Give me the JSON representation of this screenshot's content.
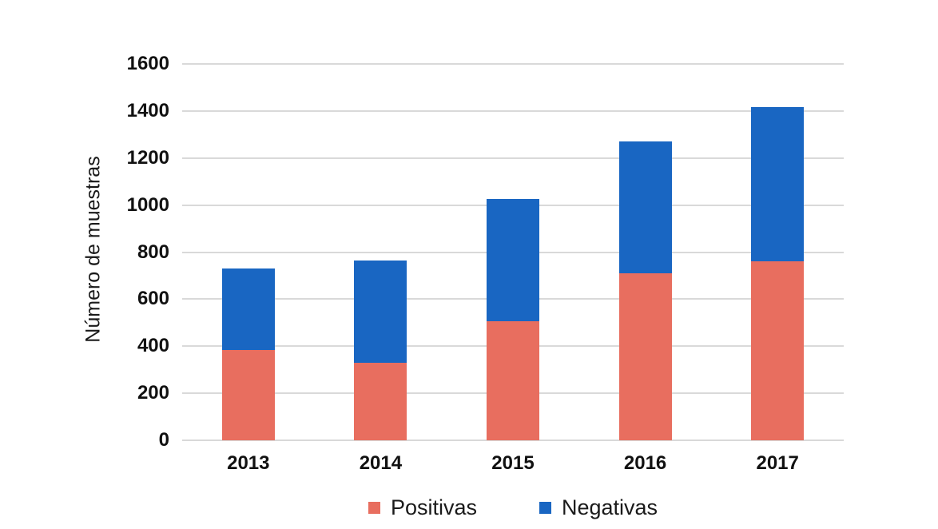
{
  "chart_data": {
    "type": "bar",
    "stacked": true,
    "title": "",
    "xlabel": "",
    "ylabel": "Número de muestras",
    "categories": [
      "2013",
      "2014",
      "2015",
      "2016",
      "2017"
    ],
    "series": [
      {
        "name": "Positivas",
        "color": "#E86E5F",
        "values": [
          385,
          330,
          505,
          710,
          760
        ]
      },
      {
        "name": "Negativas",
        "color": "#1966C2",
        "values": [
          345,
          435,
          520,
          560,
          655
        ]
      }
    ],
    "stack_totals": [
      730,
      765,
      1025,
      1270,
      1415
    ],
    "ylim": [
      0,
      1600
    ],
    "ytick_step": 200,
    "ytick_labels": [
      "0",
      "200",
      "400",
      "600",
      "800",
      "1000",
      "1200",
      "1400",
      "1600"
    ],
    "grid": true,
    "gridline_color": "#D9D9D9",
    "legend_position": "bottom-center",
    "legend": [
      "Positivas",
      "Negativas"
    ]
  }
}
